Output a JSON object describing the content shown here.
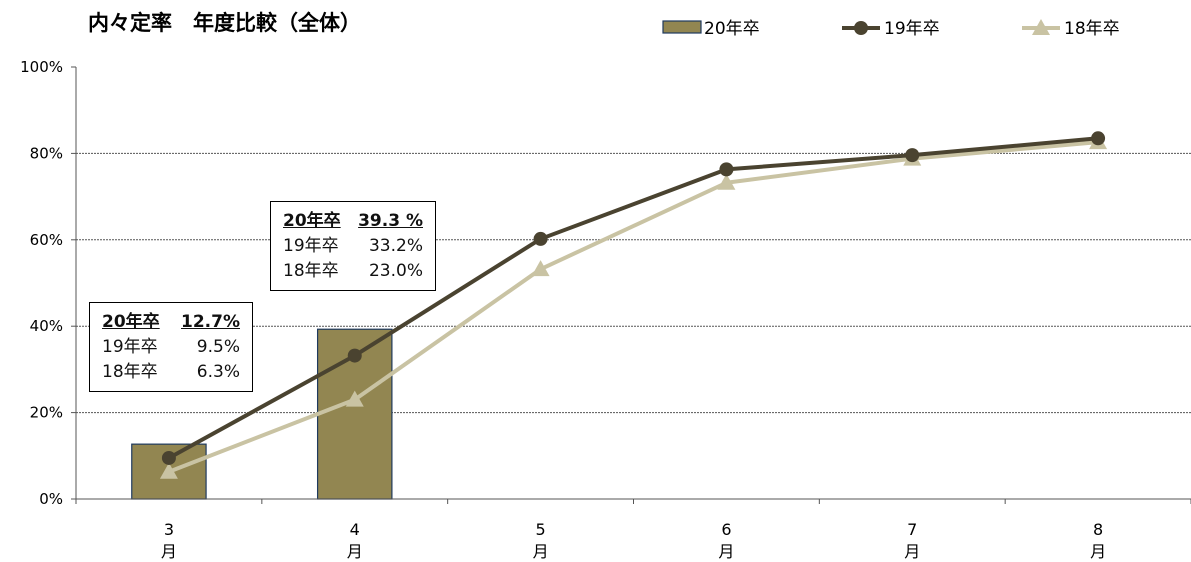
{
  "chart_data": {
    "type": "bar",
    "title": "内々定率　年度比較（全体）",
    "categories": [
      [
        "3",
        "月"
      ],
      [
        "4",
        "月"
      ],
      [
        "5",
        "月"
      ],
      [
        "6",
        "月"
      ],
      [
        "7",
        "月"
      ],
      [
        "8",
        "月"
      ]
    ],
    "ylim": [
      0,
      100
    ],
    "yticks": [
      "0%",
      "20%",
      "40%",
      "60%",
      "80%",
      "100%"
    ],
    "grid": true,
    "legend_position": "top-right",
    "series": [
      {
        "name": "20年卒",
        "kind": "bar",
        "color": "#928651",
        "values": [
          12.7,
          39.3,
          null,
          null,
          null,
          null
        ]
      },
      {
        "name": "19年卒",
        "kind": "line",
        "marker": "circle",
        "color": "#4a4330",
        "values": [
          9.5,
          33.2,
          60.2,
          76.3,
          79.6,
          83.5
        ]
      },
      {
        "name": "18年卒",
        "kind": "line",
        "marker": "triangle",
        "color": "#c9c3a3",
        "values": [
          6.3,
          23.0,
          53.2,
          73.2,
          78.8,
          82.6
        ]
      }
    ],
    "annotations": [
      {
        "category_index": 0,
        "lines": [
          [
            "20年卒",
            "12.7%"
          ],
          [
            "19年卒",
            "9.5%"
          ],
          [
            "18年卒",
            "6.3%"
          ]
        ]
      },
      {
        "category_index": 1,
        "lines": [
          [
            "20年卒",
            "39.3 %"
          ],
          [
            "19年卒",
            "33.2%"
          ],
          [
            "18年卒",
            "23.0%"
          ]
        ]
      }
    ]
  }
}
